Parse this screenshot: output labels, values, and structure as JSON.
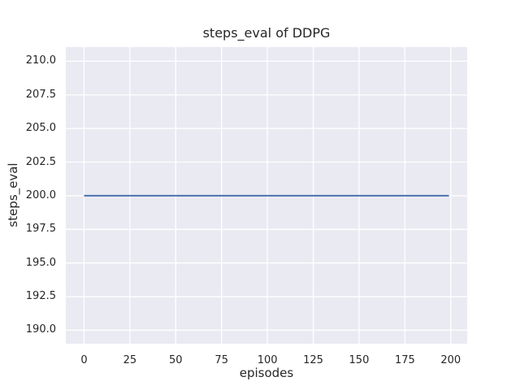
{
  "figure": {
    "background_color": "#ffffff",
    "axes_background_color": "#eaeaf2",
    "grid_color": "#ffffff",
    "text_color": "#262626"
  },
  "chart_data": {
    "type": "line",
    "title": "steps_eval of DDPG",
    "xlabel": "episodes",
    "ylabel": "steps_eval",
    "xlim": [
      -9.95,
      208.95
    ],
    "ylim": [
      189.0,
      211.05
    ],
    "xticklabels": [
      "0",
      "25",
      "50",
      "75",
      "100",
      "125",
      "150",
      "175",
      "200"
    ],
    "yticklabels": [
      "190.0",
      "192.5",
      "195.0",
      "197.5",
      "200.0",
      "202.5",
      "205.0",
      "207.5",
      "210.0"
    ],
    "grid": true,
    "legend": false,
    "series": [
      {
        "name": "steps_eval of DDPG",
        "color": "#4c72b0",
        "x": [
          0,
          199
        ],
        "y": [
          200,
          200
        ]
      }
    ]
  }
}
